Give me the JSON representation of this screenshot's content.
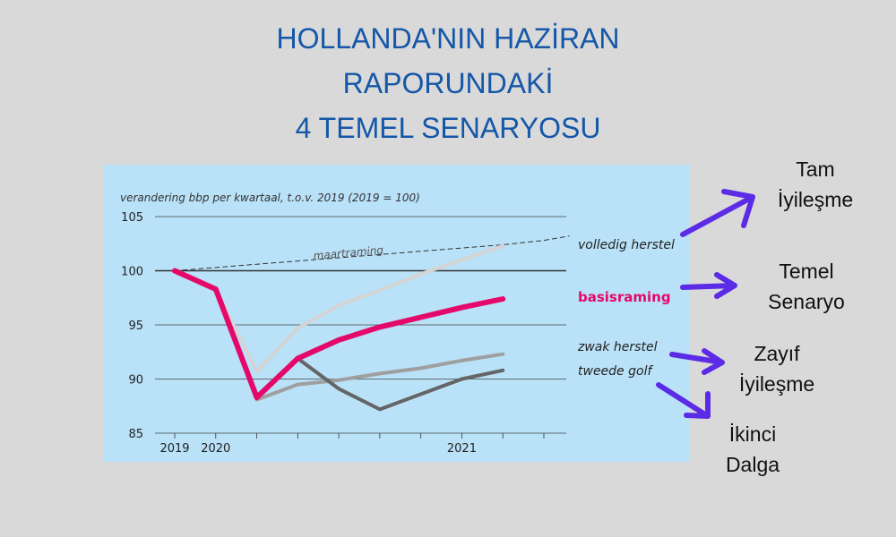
{
  "title": {
    "line1": "HOLLANDA'NIN HAZİRAN",
    "line2": "RAPORUNDAKİ",
    "line3": "4 TEMEL SENARYOSU"
  },
  "callouts": {
    "full": [
      "Tam",
      "İyileşme"
    ],
    "base": [
      "Temel",
      "Senaryo"
    ],
    "weak": [
      "Zayıf",
      "İyileşme"
    ],
    "second": [
      "İkinci",
      "Dalga"
    ]
  },
  "colors": {
    "background": "#d9d9d9",
    "title": "#1457a8",
    "panel": "#b9e1f8",
    "arrow": "#5b2be6",
    "basis": "#e5086b"
  },
  "chart_data": {
    "type": "line",
    "title": "verandering bbp per kwartaal, t.o.v. 2019 (2019 = 100)",
    "ylim": [
      85,
      105
    ],
    "yticks": [
      "105",
      "100",
      "95",
      "90",
      "85"
    ],
    "x": [
      "2019",
      "2020",
      "2020Q1",
      "2020Q2",
      "2020Q3",
      "2020Q4",
      "2021Q1",
      "2021Q2",
      "2021Q3",
      "2021Q4",
      "2022Q1"
    ],
    "xtick_labels": [
      {
        "x": "2019",
        "label": "2019"
      },
      {
        "x": "2020",
        "label": "2020"
      },
      {
        "x": "2021Q2",
        "label": "2021"
      }
    ],
    "series": [
      {
        "name": "maartraming",
        "style": "dashed",
        "color": "#333333",
        "values": [
          100,
          100.3,
          100.6,
          100.9,
          101.2,
          101.5,
          101.8,
          102.1,
          102.4,
          102.8,
          103.2
        ]
      },
      {
        "name": "volledig herstel",
        "style": "solid",
        "color": "#d4d4d4",
        "values": [
          100,
          98.3,
          90.7,
          94.7,
          96.8,
          98.2,
          99.7,
          101.0,
          102.3,
          null,
          null
        ]
      },
      {
        "name": "basisraming",
        "style": "solid",
        "color": "#e5086b",
        "values": [
          100,
          98.3,
          88.3,
          91.9,
          93.6,
          94.8,
          95.7,
          96.6,
          97.4,
          null,
          null
        ]
      },
      {
        "name": "zwak herstel",
        "style": "solid",
        "color": "#9f9f9f",
        "values": [
          100,
          98.3,
          88.1,
          89.5,
          89.9,
          90.5,
          91.0,
          91.7,
          92.3,
          null,
          null
        ]
      },
      {
        "name": "tweede golf",
        "style": "solid",
        "color": "#656565",
        "values": [
          100,
          98.3,
          88.3,
          91.9,
          89.1,
          87.2,
          88.6,
          90.0,
          90.8,
          null,
          null
        ]
      }
    ],
    "annotation": "maartraming",
    "grid": true
  }
}
